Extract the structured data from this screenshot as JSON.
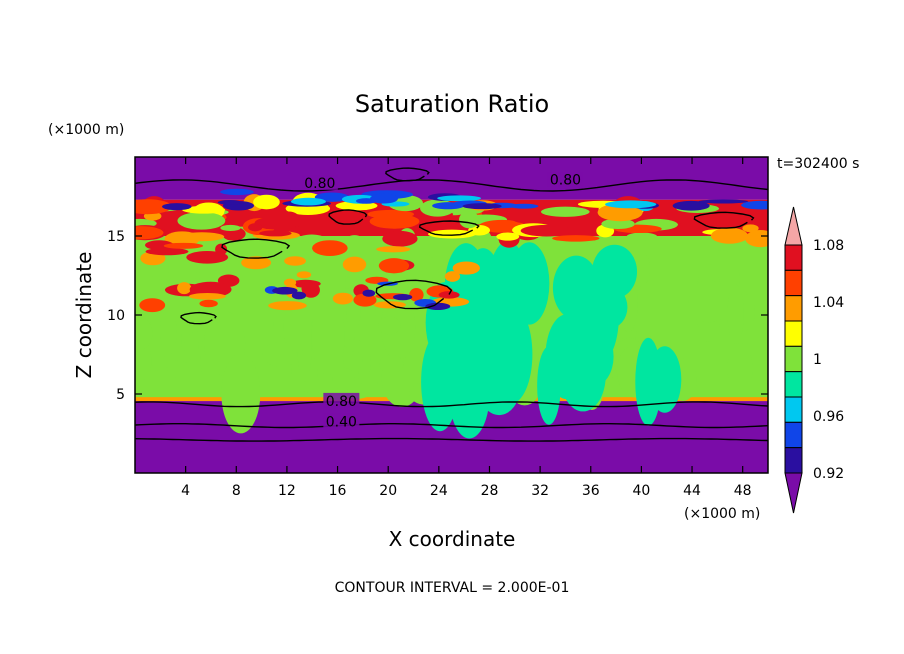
{
  "chart_data": {
    "type": "heatmap",
    "title": "Saturation Ratio",
    "xlabel": "X coordinate",
    "ylabel": "Z coordinate",
    "x_unit": "(×1000 m)",
    "y_unit": "(×1000 m)",
    "time_label": "t=302400 s",
    "footer": "CONTOUR INTERVAL = 2.000E-01",
    "xlim": [
      0,
      50
    ],
    "ylim": [
      0,
      20
    ],
    "x_ticks": [
      4,
      8,
      12,
      16,
      20,
      24,
      28,
      32,
      36,
      40,
      44,
      48
    ],
    "y_ticks": [
      5,
      10,
      15
    ],
    "colorbar": {
      "levels": [
        0.9,
        0.92,
        0.94,
        0.96,
        0.98,
        1.0,
        1.02,
        1.04,
        1.06,
        1.08,
        1.1
      ],
      "labels": [
        "0.92",
        "0.96",
        "1",
        "1.04",
        "1.08"
      ],
      "label_values": [
        0.92,
        0.96,
        1.0,
        1.04,
        1.08
      ],
      "colors": [
        "#7a0ca8",
        "#2a0fa0",
        "#1045e8",
        "#00c8f0",
        "#00e6a0",
        "#7fe23a",
        "#ffff00",
        "#ff9c00",
        "#ff4000",
        "#e01020",
        "#f4a6a6"
      ],
      "extend": "both"
    },
    "contour_labels": [
      {
        "text": "0.80",
        "x": 14.6,
        "y": 18.3
      },
      {
        "text": "0.80",
        "x": 34.0,
        "y": 18.5
      },
      {
        "text": "0.80",
        "x": 16.3,
        "y": 4.5
      },
      {
        "text": "0.40",
        "x": 16.3,
        "y": 3.2
      }
    ],
    "bands": [
      {
        "value": 0.85,
        "from": 0,
        "to": 4.6
      },
      {
        "value": 1.0,
        "from": 4.6,
        "to": 15.0
      },
      {
        "value": 1.09,
        "from": 15.0,
        "to": 17.3
      },
      {
        "value": 0.85,
        "from": 17.3,
        "to": 20
      }
    ]
  }
}
